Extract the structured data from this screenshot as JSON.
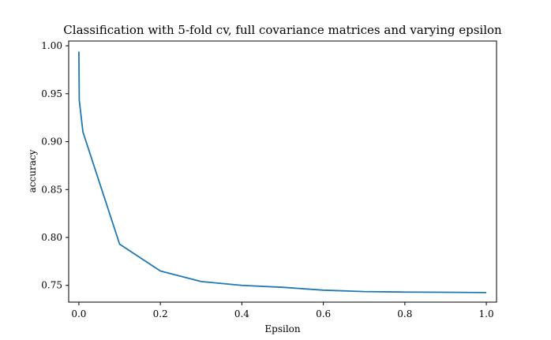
{
  "chart_data": {
    "type": "line",
    "title": "Classification with 5-fold cv, full covariance matrices and varying epsilon",
    "xlabel": "Epsilon",
    "ylabel": "accuracy",
    "xlim": [
      -0.025,
      1.025
    ],
    "ylim": [
      0.7325,
      1.005
    ],
    "xticks": [
      0.0,
      0.2,
      0.4,
      0.6,
      0.8,
      1.0
    ],
    "xtick_labels": [
      "0.0",
      "0.2",
      "0.4",
      "0.6",
      "0.8",
      "1.0"
    ],
    "yticks": [
      0.75,
      0.8,
      0.85,
      0.9,
      0.95,
      1.0
    ],
    "ytick_labels": [
      "0.75",
      "0.80",
      "0.85",
      "0.90",
      "0.95",
      "1.00"
    ],
    "grid": false,
    "series": [
      {
        "color": "#1f77b4",
        "x": [
          0.0,
          0.001,
          0.01,
          0.1,
          0.2,
          0.3,
          0.4,
          0.5,
          0.6,
          0.7,
          0.8,
          0.9,
          1.0
        ],
        "y": [
          0.994,
          0.943,
          0.91,
          0.793,
          0.765,
          0.754,
          0.75,
          0.748,
          0.745,
          0.7435,
          0.743,
          0.7428,
          0.7425
        ]
      }
    ]
  }
}
